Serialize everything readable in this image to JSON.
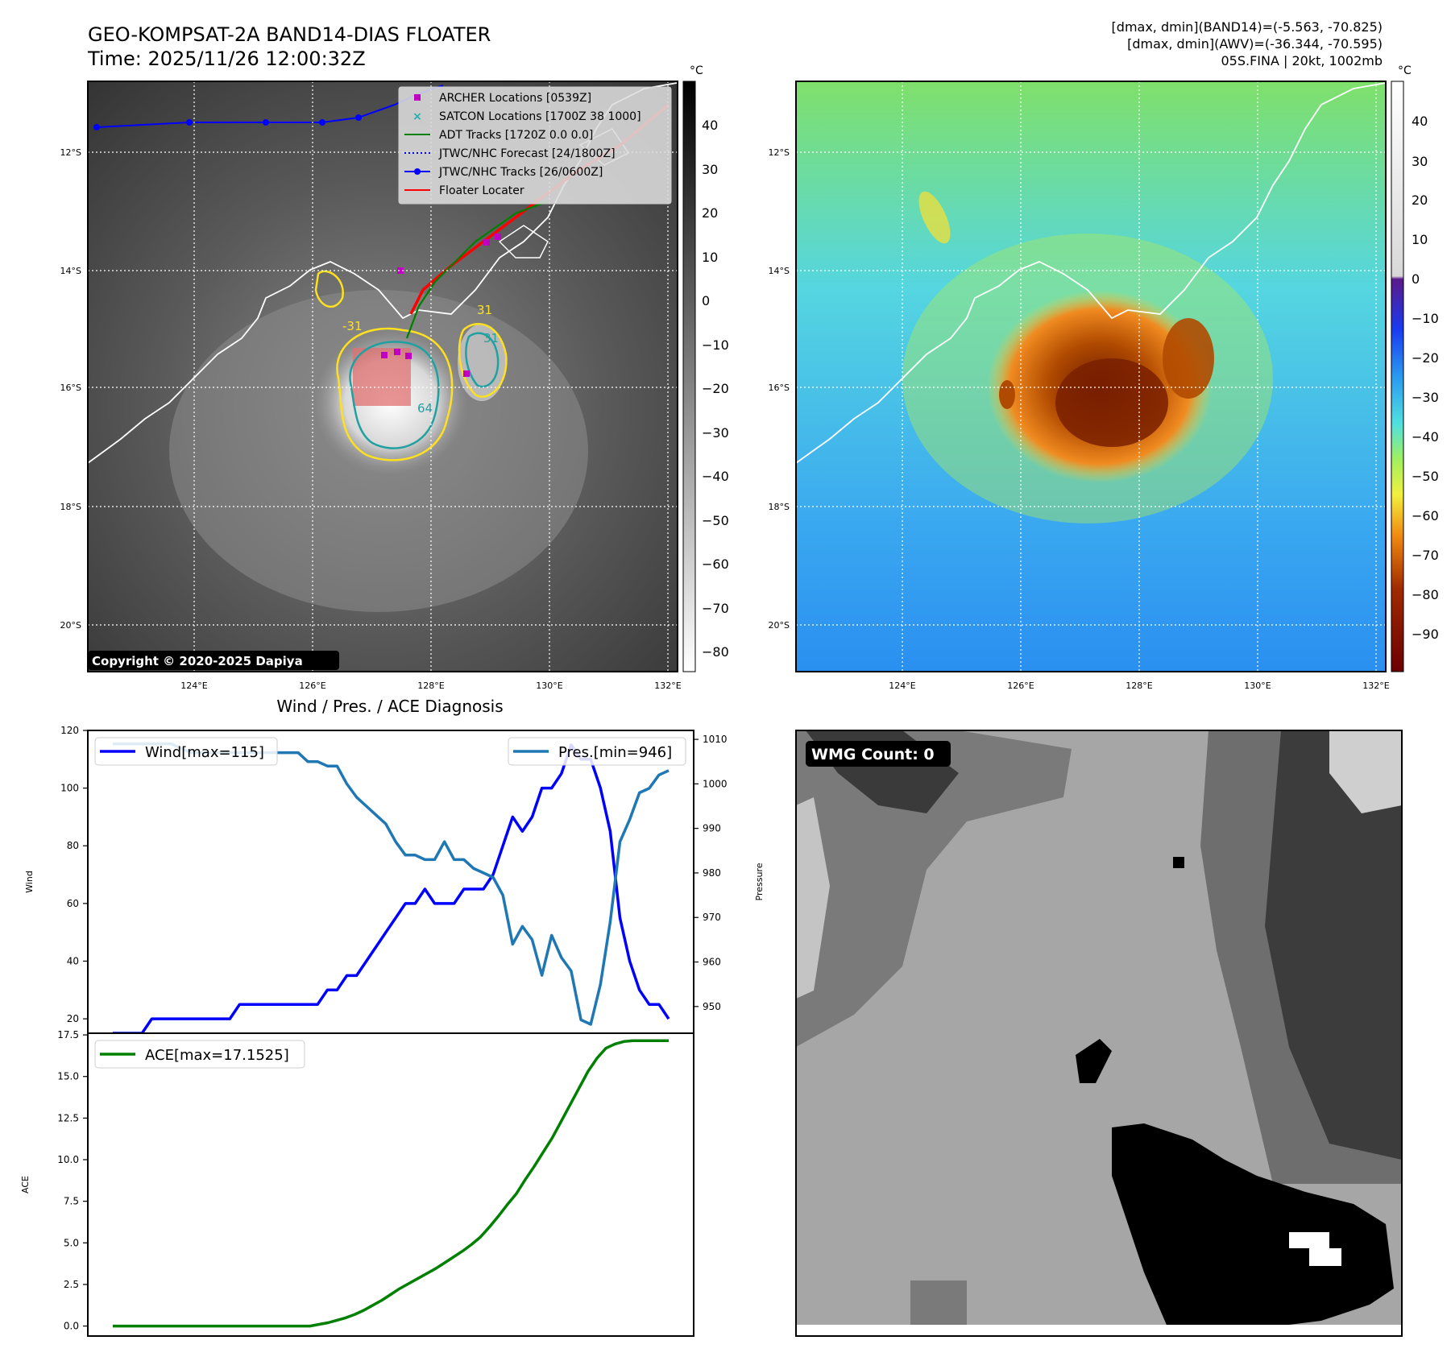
{
  "header": {
    "title": "GEO-KOMPSAT-2A BAND14-DIAS FLOATER",
    "time": "Time: 2025/11/26 12:00:32Z",
    "info_line1": "[dmax, dmin](BAND14)=(-5.563, -70.825)",
    "info_line2": "[dmax, dmin](AWV)=(-36.344, -70.595)",
    "info_line3": "05S.FINA | 20kt, 1002mb"
  },
  "map_ir": {
    "lat_labels": [
      "12°S",
      "14°S",
      "16°S",
      "18°S",
      "20°S"
    ],
    "lon_labels": [
      "124°E",
      "126°E",
      "128°E",
      "130°E",
      "132°E"
    ],
    "copyright": "Copyright © 2020-2025 Dapiya",
    "contour_labels": [
      "-31",
      "64",
      "31",
      "31"
    ],
    "colorbar_unit": "°C",
    "colorbar_ticks": [
      "40",
      "30",
      "20",
      "10",
      "0",
      "−10",
      "−20",
      "−30",
      "−40",
      "−50",
      "−60",
      "−70",
      "−80"
    ],
    "legend": [
      {
        "label": "ARCHER Locations [0539Z]",
        "color": "#c000c0",
        "marker": "square"
      },
      {
        "label": "SATCON Locations [1700Z 38 1000]",
        "color": "#20b0b0",
        "marker": "x"
      },
      {
        "label": "ADT Tracks [1720Z 0.0 0.0]",
        "color": "#008000",
        "marker": "line"
      },
      {
        "label": "JTWC/NHC Forecast [24/1800Z]",
        "color": "#0000ff",
        "marker": "dotted"
      },
      {
        "label": "JTWC/NHC Tracks [26/0600Z]",
        "color": "#0000ff",
        "marker": "line-dot"
      },
      {
        "label": "Floater Locater",
        "color": "#ff0000",
        "marker": "line"
      }
    ]
  },
  "map_wv": {
    "lat_labels": [
      "12°S",
      "14°S",
      "16°S",
      "18°S",
      "20°S"
    ],
    "lon_labels": [
      "124°E",
      "126°E",
      "128°E",
      "130°E",
      "132°E"
    ],
    "colorbar_unit": "°C",
    "colorbar_ticks": [
      "40",
      "30",
      "20",
      "10",
      "0",
      "−10",
      "−20",
      "−30",
      "−40",
      "−50",
      "−60",
      "−70",
      "−80",
      "−90"
    ]
  },
  "wmg": {
    "label": "WMG Count: 0"
  },
  "chart_data": [
    {
      "type": "line",
      "title": "Wind / Pres. / ACE Diagnosis",
      "ylabel": "Wind",
      "y2label": "Pressure",
      "ylim": [
        15,
        120
      ],
      "y2lim": [
        944,
        1012
      ],
      "yticks": [
        "20",
        "40",
        "60",
        "80",
        "100",
        "120"
      ],
      "y2ticks": [
        "950",
        "960",
        "970",
        "980",
        "990",
        "1000",
        "1010"
      ],
      "series": [
        {
          "name": "Wind[max=115]",
          "color": "#0000ff",
          "values": [
            15,
            15,
            15,
            15,
            20,
            20,
            20,
            20,
            20,
            20,
            20,
            20,
            20,
            25,
            25,
            25,
            25,
            25,
            25,
            25,
            25,
            25,
            30,
            30,
            35,
            35,
            40,
            45,
            50,
            55,
            60,
            60,
            65,
            60,
            60,
            60,
            65,
            65,
            65,
            70,
            80,
            90,
            85,
            90,
            100,
            100,
            105,
            115,
            110,
            110,
            100,
            85,
            55,
            40,
            30,
            25,
            25,
            20
          ]
        },
        {
          "name": "Pres.[min=946]",
          "color": "#1f77b4",
          "axis": "right",
          "values": [
            1009,
            1009,
            1009,
            1009,
            1009,
            1009,
            1009,
            1008,
            1007,
            1007,
            1007,
            1007,
            1007,
            1007,
            1007,
            1007,
            1007,
            1007,
            1007,
            1007,
            1005,
            1005,
            1004,
            1004,
            1000,
            997,
            995,
            993,
            991,
            987,
            984,
            984,
            983,
            983,
            987,
            983,
            983,
            981,
            980,
            979,
            975,
            964,
            968,
            965,
            957,
            966,
            961,
            958,
            947,
            946,
            955,
            969,
            987,
            992,
            998,
            999,
            1002,
            1003
          ]
        }
      ]
    },
    {
      "type": "line",
      "ylabel": "ACE",
      "ylim": [
        -0.6,
        17.6
      ],
      "yticks": [
        "0.0",
        "2.5",
        "5.0",
        "7.5",
        "10.0",
        "12.5",
        "15.0",
        "17.5"
      ],
      "series": [
        {
          "name": "ACE[max=17.1525]",
          "color": "#008000",
          "values": [
            0,
            0,
            0,
            0,
            0,
            0,
            0,
            0,
            0,
            0,
            0,
            0,
            0,
            0,
            0,
            0,
            0,
            0,
            0,
            0,
            0,
            0,
            0,
            0.1,
            0.2,
            0.35,
            0.5,
            0.7,
            0.95,
            1.25,
            1.55,
            1.9,
            2.25,
            2.55,
            2.85,
            3.15,
            3.45,
            3.8,
            4.15,
            4.5,
            4.9,
            5.35,
            5.95,
            6.6,
            7.3,
            7.95,
            8.8,
            9.6,
            10.45,
            11.3,
            12.3,
            13.3,
            14.3,
            15.3,
            16.1,
            16.7,
            16.95,
            17.1,
            17.15,
            17.15,
            17.15,
            17.15,
            17.15
          ]
        }
      ]
    }
  ]
}
